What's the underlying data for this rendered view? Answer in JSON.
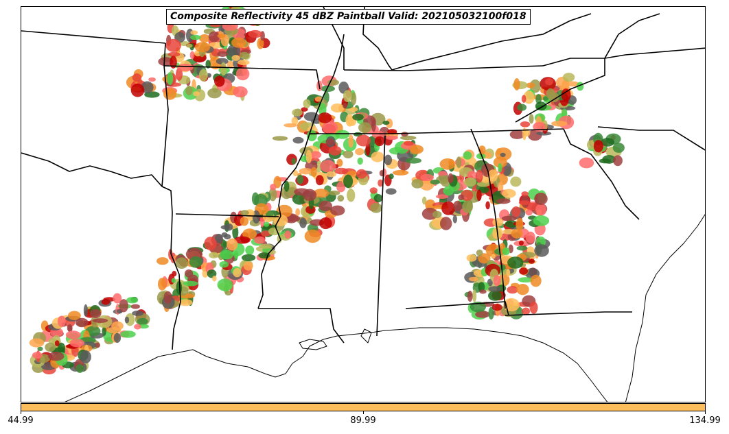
{
  "title": "Composite Reflectivity 45 dBZ Paintball Valid: 202105032100f018",
  "colorbar": {
    "color": "#ffbe5c",
    "ticks": [
      "44.99",
      "89.99",
      "134.99"
    ]
  },
  "palette": {
    "member_colors": [
      "#e8443a",
      "#ff6b6b",
      "#f08a24",
      "#ffa64d",
      "#ffbe5c",
      "#4cd14c",
      "#3a8a3a",
      "#1e6b1e",
      "#9a9a4a",
      "#b8b85a",
      "#a04040",
      "#5a5a5a",
      "#c00000"
    ]
  },
  "map": {
    "features": [
      "state-boundaries",
      "coastline",
      "storm-paintball-blobs"
    ]
  }
}
